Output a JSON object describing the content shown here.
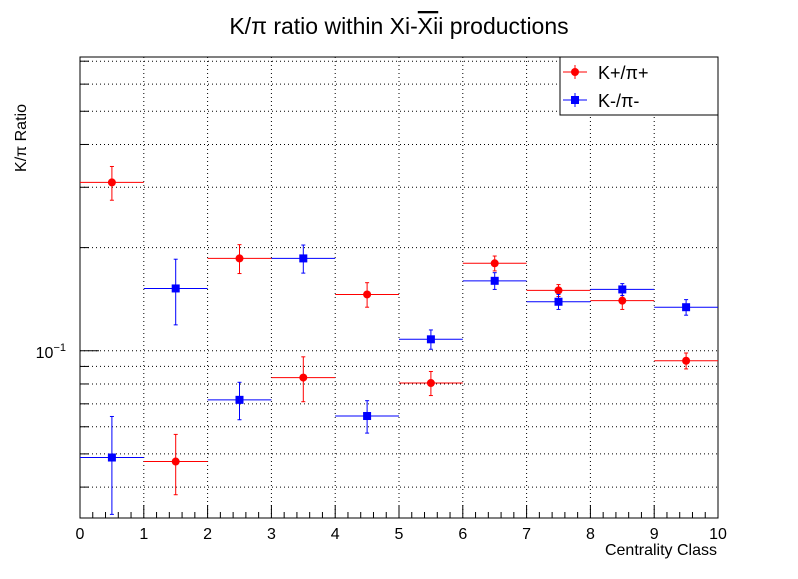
{
  "chart_data": {
    "type": "scatter",
    "title_parts": [
      "K/π ratio within Xi-",
      "Xi",
      "i productions"
    ],
    "xlabel": "Centrality Class",
    "ylabel": "K/π Ratio",
    "y_scale": "log",
    "xlim": [
      0,
      10
    ],
    "ylim": [
      0.0325,
      0.72
    ],
    "x_ticks": [
      "0",
      "1",
      "2",
      "3",
      "4",
      "5",
      "6",
      "7",
      "8",
      "9",
      "10"
    ],
    "y_tick_label": {
      "base": "10",
      "exp": "−1",
      "value": 0.1
    },
    "grid": true,
    "legend_position": "top-right",
    "series": [
      {
        "name": "K+/π+",
        "color": "#ff0000",
        "marker": "circle",
        "x": [
          0.5,
          1.5,
          2.5,
          3.5,
          4.5,
          5.5,
          6.5,
          7.5,
          8.5,
          9.5
        ],
        "y": [
          0.31,
          0.0475,
          0.186,
          0.0835,
          0.146,
          0.0805,
          0.18,
          0.15,
          0.14,
          0.0935
        ],
        "y_err": [
          0.035,
          0.0095,
          0.018,
          0.0125,
          0.012,
          0.0065,
          0.009,
          0.006,
          0.008,
          0.005
        ]
      },
      {
        "name": "K-/π-",
        "color": "#0000ff",
        "marker": "square",
        "x": [
          0.5,
          1.5,
          2.5,
          3.5,
          4.5,
          5.5,
          6.5,
          7.5,
          8.5,
          9.5
        ],
        "y": [
          0.0488,
          0.152,
          0.0719,
          0.186,
          0.0645,
          0.108,
          0.16,
          0.139,
          0.151,
          0.134
        ],
        "y_err": [
          0.0155,
          0.033,
          0.009,
          0.0175,
          0.007,
          0.007,
          0.009,
          0.007,
          0.006,
          0.007
        ]
      }
    ]
  },
  "colors": {
    "axis": "#000000",
    "grid": "#000000",
    "background": "#ffffff"
  }
}
